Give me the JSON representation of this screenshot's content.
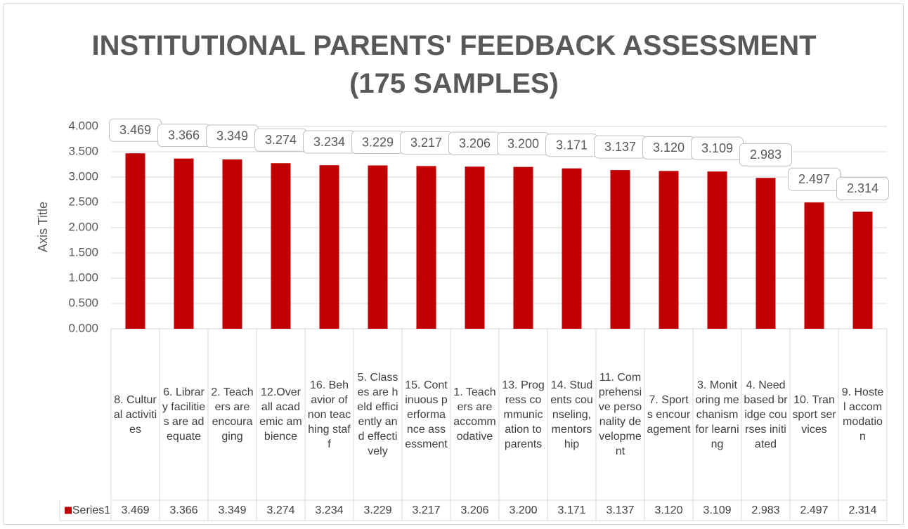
{
  "chart_data": {
    "type": "bar",
    "title": "INSTITUTIONAL PARENTS' FEEDBACK ASSESSMENT (175 SAMPLES)",
    "y_label": "Axis Title",
    "categories": [
      "8. Cultural activities",
      "6. Library facilities are adequate",
      "2. Teachers are encouraging",
      "12.Overall academic ambience",
      "16. Behavior of non teaching staff",
      "5. Classes are held efficiently and effectively",
      "15. Continuous performance assessment",
      "1. Teachers are accommodative",
      "13. Progress communication to parents",
      "14. Students counseling, mentorship",
      "11. Comprehensive personality development",
      "7. Sports encouragement",
      "3. Monitoring mechanism for learning",
      "4. Need based bridge courses initiated",
      "10. Transport services",
      "9. Hostel accommodation"
    ],
    "series": [
      {
        "name": "Series1",
        "color": "#c00000",
        "values": [
          3.469,
          3.366,
          3.349,
          3.274,
          3.234,
          3.229,
          3.217,
          3.206,
          3.2,
          3.171,
          3.137,
          3.12,
          3.109,
          2.983,
          2.497,
          2.314
        ],
        "value_labels": [
          "3.469",
          "3.366",
          "3.349",
          "3.274",
          "3.234",
          "3.229",
          "3.217",
          "3.206",
          "3.200",
          "3.171",
          "3.137",
          "3.120",
          "3.109",
          "2.983",
          "2.497",
          "2.314"
        ]
      }
    ],
    "ylim": [
      0,
      4
    ],
    "yticks": [
      {
        "value": 0,
        "label": "0.000"
      },
      {
        "value": 0.5,
        "label": "0.500"
      },
      {
        "value": 1,
        "label": "1.000"
      },
      {
        "value": 1.5,
        "label": "1.500"
      },
      {
        "value": 2,
        "label": "2.000"
      },
      {
        "value": 2.5,
        "label": "2.500"
      },
      {
        "value": 3,
        "label": "3.000"
      },
      {
        "value": 3.5,
        "label": "3.500"
      },
      {
        "value": 4,
        "label": "4.000"
      }
    ],
    "grid": true,
    "data_table": true
  }
}
